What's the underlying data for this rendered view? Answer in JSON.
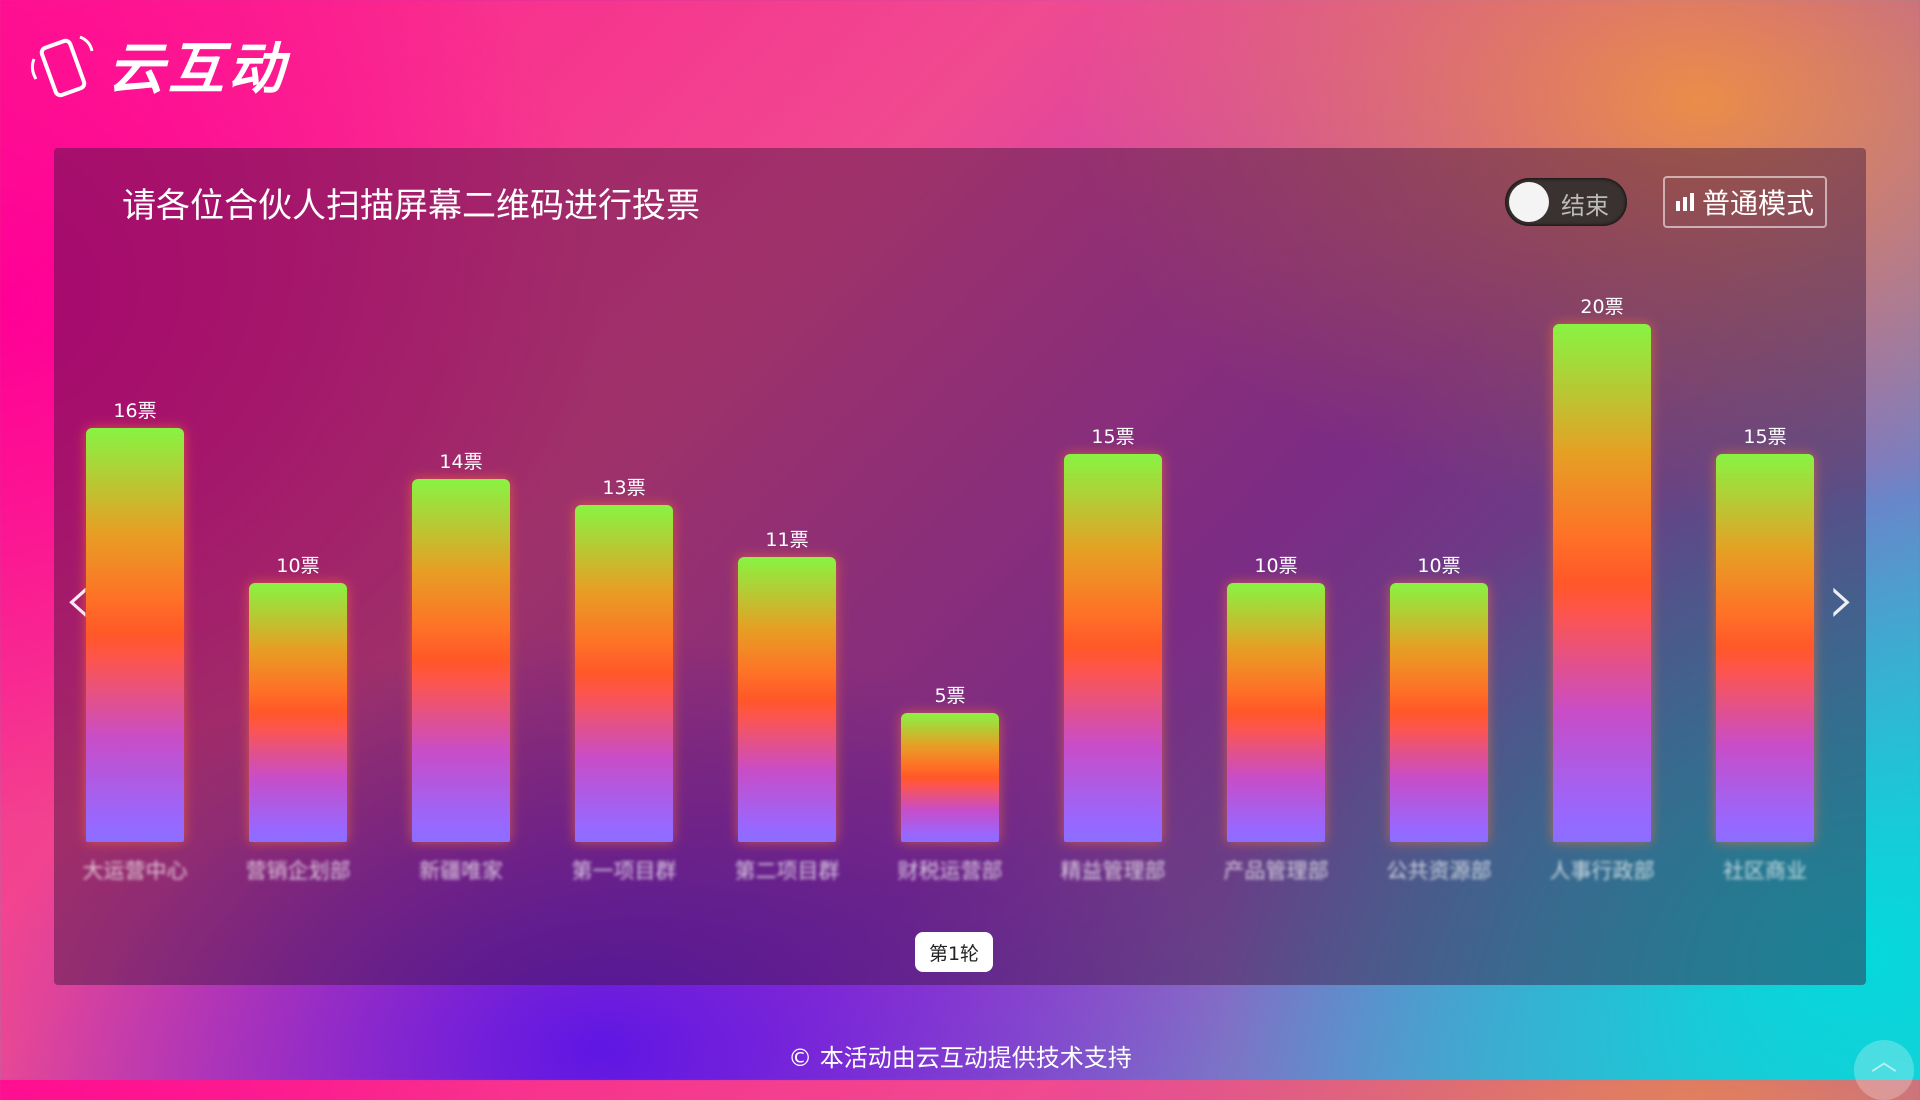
{
  "logo": {
    "text": "云互动"
  },
  "panel": {
    "title": "请各位合伙人扫描屏幕二维码进行投票",
    "toggle": {
      "label": "结束",
      "on": false
    },
    "mode_button": "普通模式",
    "round_label": "第1轮",
    "prev_icon": "chevron-left-icon",
    "next_icon": "chevron-right-icon"
  },
  "chart_data": {
    "type": "bar",
    "categories": [
      "大运营中心",
      "营销企划部",
      "新疆唯家",
      "第一项目群",
      "第二项目群",
      "财税运营部",
      "精益管理部",
      "产品管理部",
      "公共资源部",
      "人事行政部",
      "社区商业"
    ],
    "values": [
      16,
      10,
      14,
      13,
      11,
      5,
      15,
      10,
      10,
      20,
      15
    ],
    "value_labels": [
      "16票",
      "10票",
      "14票",
      "13票",
      "11票",
      "5票",
      "15票",
      "10票",
      "10票",
      "20票",
      "15票"
    ],
    "unit": "票"
  },
  "footer": {
    "text": "© 本活动由云互动提供技术支持"
  }
}
